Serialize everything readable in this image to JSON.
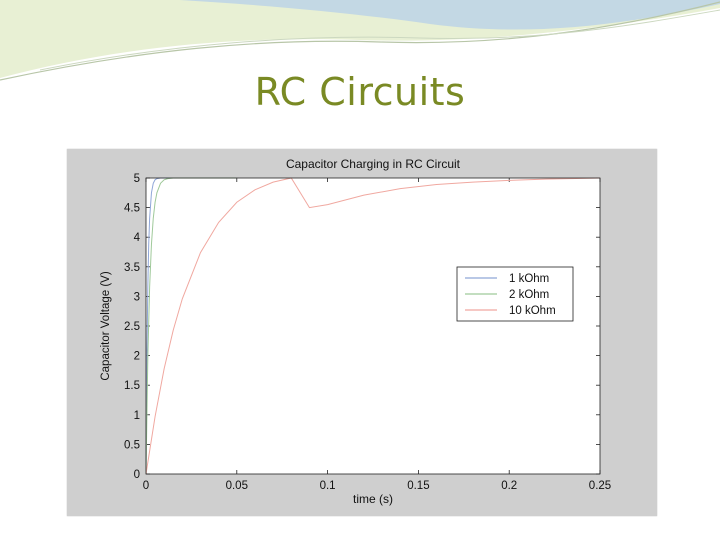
{
  "slide": {
    "title": "RC Circuits",
    "colors": {
      "title": "#7a8a24",
      "decor_light": "#e8f0d4",
      "decor_blue": "#bcd4e6"
    }
  },
  "chart_data": {
    "type": "line",
    "title": "Capacitor Charging in RC Circuit",
    "xlabel": "time (s)",
    "ylabel": "Capacitor Voltage (V)",
    "xlim": [
      0,
      0.25
    ],
    "ylim": [
      0,
      5
    ],
    "xticks": [
      0,
      0.05,
      0.1,
      0.15,
      0.2,
      0.25
    ],
    "xtick_labels": [
      "0",
      "0.05",
      "0.1",
      "0.15",
      "0.2",
      "0.25"
    ],
    "yticks": [
      0,
      0.5,
      1,
      1.5,
      2,
      2.5,
      3,
      3.5,
      4,
      4.5,
      5
    ],
    "ytick_labels": [
      "0",
      "0.5",
      "1",
      "1.5",
      "2",
      "2.5",
      "3",
      "3.5",
      "4",
      "4.5",
      "5"
    ],
    "grid": false,
    "legend_position": "right",
    "series": [
      {
        "name": "1 kOhm",
        "color": "#8fa6d8",
        "x": [
          0,
          0.0005,
          0.001,
          0.0015,
          0.002,
          0.003,
          0.004,
          0.005,
          0.006,
          0.008,
          0.01,
          0.012,
          0.015,
          0.02,
          0.025,
          0.03,
          0.05
        ],
        "y": [
          0,
          1.97,
          3.16,
          3.88,
          4.32,
          4.75,
          4.91,
          4.97,
          4.99,
          5.0,
          5.0,
          5.0,
          5.0,
          5.0,
          5.0,
          5.0,
          5.0
        ]
      },
      {
        "name": "2 kOhm",
        "color": "#9fc99a",
        "x": [
          0,
          0.001,
          0.002,
          0.003,
          0.004,
          0.005,
          0.006,
          0.008,
          0.01,
          0.012,
          0.015,
          0.02,
          0.025,
          0.03,
          0.04,
          0.05
        ],
        "y": [
          0,
          1.97,
          3.16,
          3.88,
          4.32,
          4.59,
          4.75,
          4.91,
          4.97,
          4.99,
          5.0,
          5.0,
          5.0,
          5.0,
          5.0,
          5.0
        ]
      },
      {
        "name": "10 kOhm",
        "color": "#f0a8a0",
        "x": [
          0,
          0.005,
          0.01,
          0.015,
          0.02,
          0.03,
          0.04,
          0.05,
          0.06,
          0.07,
          0.08,
          0.09,
          0.1,
          0.12,
          0.14,
          0.16,
          0.18,
          0.2,
          0.22,
          0.25
        ],
        "y": [
          0,
          0.97,
          1.78,
          2.43,
          2.96,
          3.74,
          4.25,
          4.59,
          4.8,
          4.93,
          5.0,
          4.5,
          4.55,
          4.71,
          4.82,
          4.89,
          4.93,
          4.96,
          4.98,
          5.0
        ]
      }
    ]
  }
}
